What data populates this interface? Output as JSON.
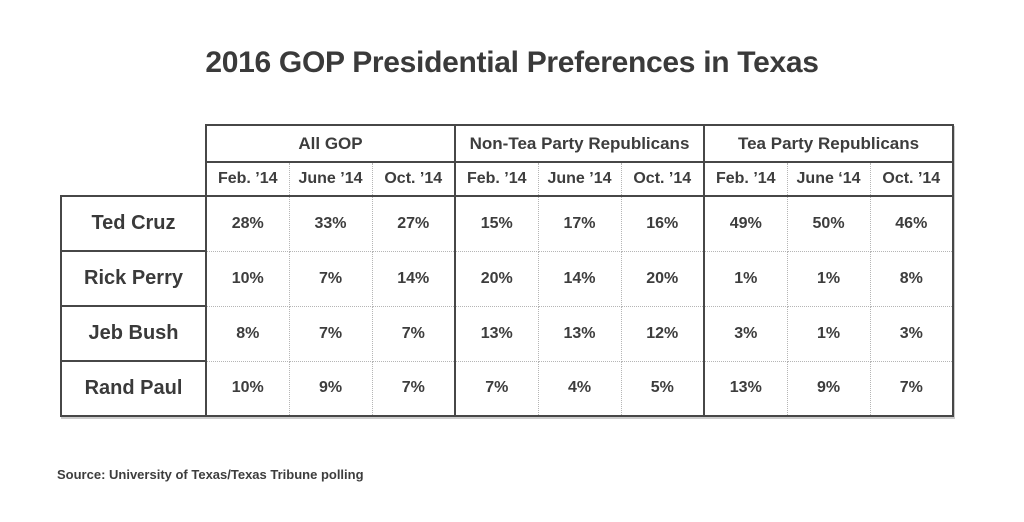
{
  "title": "2016 GOP Presidential Preferences in Texas",
  "source": "Source: University of Texas/Texas Tribune polling",
  "chart_data": {
    "type": "table",
    "title": "2016 GOP Presidential Preferences in Texas",
    "groups": [
      {
        "label": "All GOP",
        "columns": [
          "Feb. ’14",
          "June ’14",
          "Oct. ’14"
        ]
      },
      {
        "label": "Non-Tea Party Republicans",
        "columns": [
          "Feb. ’14",
          "June ’14",
          "Oct. ’14"
        ]
      },
      {
        "label": "Tea Party Republicans",
        "columns": [
          "Feb. ’14",
          "June ‘14",
          "Oct. ’14"
        ]
      }
    ],
    "rows": [
      {
        "label": "Ted Cruz",
        "values": [
          "28%",
          "33%",
          "27%",
          "15%",
          "17%",
          "16%",
          "49%",
          "50%",
          "46%"
        ]
      },
      {
        "label": "Rick Perry",
        "values": [
          "10%",
          "7%",
          "14%",
          "20%",
          "14%",
          "20%",
          "1%",
          "1%",
          "8%"
        ]
      },
      {
        "label": "Jeb Bush",
        "values": [
          "8%",
          "7%",
          "7%",
          "13%",
          "13%",
          "12%",
          "3%",
          "1%",
          "3%"
        ]
      },
      {
        "label": "Rand Paul",
        "values": [
          "10%",
          "9%",
          "7%",
          "7%",
          "4%",
          "5%",
          "13%",
          "9%",
          "7%"
        ]
      }
    ]
  }
}
